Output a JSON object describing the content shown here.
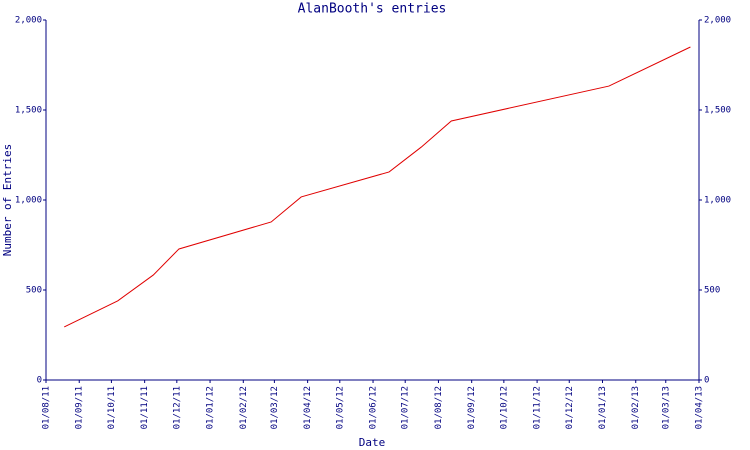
{
  "chart_data": {
    "type": "line",
    "title": "AlanBooth's entries",
    "x_label": "Date",
    "y_label": "Number of Entries",
    "x": [
      "2011-08-18",
      "2011-10-07",
      "2011-11-09",
      "2011-12-03",
      "2012-02-27",
      "2012-03-26",
      "2012-06-16",
      "2012-07-16",
      "2012-08-13",
      "2013-01-07",
      "2013-03-24"
    ],
    "series": [
      {
        "name": "entries",
        "color": "#e00000",
        "values": [
          295,
          440,
          583,
          728,
          878,
          1017,
          1156,
          1294,
          1439,
          1633,
          1850
        ]
      }
    ],
    "xlim": [
      "2011-08-01",
      "2013-04-01"
    ],
    "xticks": [
      {
        "value": "2011-08-01",
        "label": "01/08/11"
      },
      {
        "value": "2011-09-01",
        "label": "01/09/11"
      },
      {
        "value": "2011-10-01",
        "label": "01/10/11"
      },
      {
        "value": "2011-11-01",
        "label": "01/11/11"
      },
      {
        "value": "2011-12-01",
        "label": "01/12/11"
      },
      {
        "value": "2012-01-01",
        "label": "01/01/12"
      },
      {
        "value": "2012-02-01",
        "label": "01/02/12"
      },
      {
        "value": "2012-03-01",
        "label": "01/03/12"
      },
      {
        "value": "2012-04-01",
        "label": "01/04/12"
      },
      {
        "value": "2012-05-01",
        "label": "01/05/12"
      },
      {
        "value": "2012-06-01",
        "label": "01/06/12"
      },
      {
        "value": "2012-07-01",
        "label": "01/07/12"
      },
      {
        "value": "2012-08-01",
        "label": "01/08/12"
      },
      {
        "value": "2012-09-01",
        "label": "01/09/12"
      },
      {
        "value": "2012-10-01",
        "label": "01/10/12"
      },
      {
        "value": "2012-11-01",
        "label": "01/11/12"
      },
      {
        "value": "2012-12-01",
        "label": "01/12/12"
      },
      {
        "value": "2013-01-01",
        "label": "01/01/13"
      },
      {
        "value": "2013-02-01",
        "label": "01/02/13"
      },
      {
        "value": "2013-03-01",
        "label": "01/03/13"
      },
      {
        "value": "2013-04-01",
        "label": "01/04/13"
      }
    ],
    "ylim": [
      0,
      2000
    ],
    "yticks": [
      0,
      500,
      {
        "value": 1000,
        "label": "1,000"
      },
      {
        "value": 1500,
        "label": "1,500"
      },
      {
        "value": 2000,
        "label": "2,000"
      }
    ]
  }
}
